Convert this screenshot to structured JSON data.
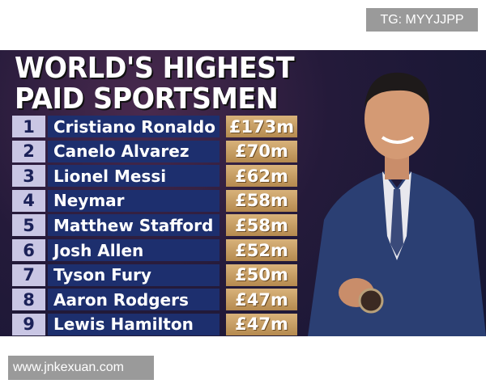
{
  "watermark_top": "TG: MYYJJPP",
  "watermark_bottom": "www.jnkexuan.com",
  "graphic": {
    "title_lines": [
      "WORLD'S HIGHEST",
      "PAID SPORTSMEN"
    ],
    "rows": [
      {
        "rank": "1",
        "name": "Cristiano Ronaldo",
        "earnings": "£173m"
      },
      {
        "rank": "2",
        "name": "Canelo Alvarez",
        "earnings": "£70m"
      },
      {
        "rank": "3",
        "name": "Lionel Messi",
        "earnings": "£62m"
      },
      {
        "rank": "4",
        "name": "Neymar",
        "earnings": "£58m"
      },
      {
        "rank": "5",
        "name": "Matthew Stafford",
        "earnings": "£58m"
      },
      {
        "rank": "6",
        "name": "Josh Allen",
        "earnings": "£52m"
      },
      {
        "rank": "7",
        "name": "Tyson Fury",
        "earnings": "£50m"
      },
      {
        "rank": "8",
        "name": "Aaron Rodgers",
        "earnings": "£47m"
      },
      {
        "rank": "9",
        "name": "Lewis Hamilton",
        "earnings": "£47m"
      }
    ]
  }
}
